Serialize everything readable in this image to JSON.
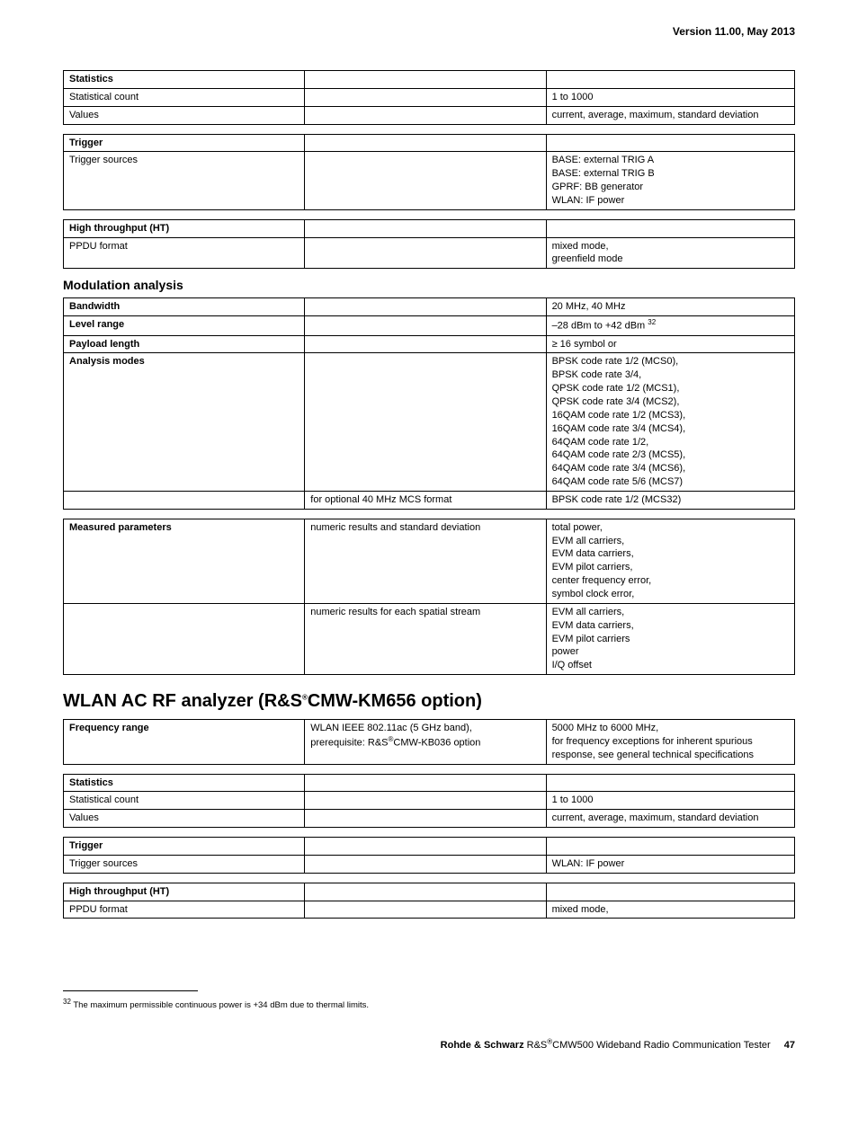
{
  "version_header": "Version 11.00, May 2013",
  "tbl_stats1": {
    "h": "Statistics",
    "rows": [
      {
        "l": "Statistical count",
        "c": "",
        "r": "1 to 1000"
      },
      {
        "l": "Values",
        "c": "",
        "r": "current, average, maximum, standard deviation"
      }
    ]
  },
  "tbl_trigger1": {
    "h": "Trigger",
    "rows": [
      {
        "l": "Trigger sources",
        "c": "",
        "r": "BASE: external TRIG A\nBASE: external TRIG B\nGPRF: BB generator\nWLAN: IF power"
      }
    ]
  },
  "tbl_ht1": {
    "h": "High throughput (HT)",
    "rows": [
      {
        "l": "PPDU format",
        "c": "",
        "r": "mixed mode,\ngreenfield mode"
      }
    ]
  },
  "mod_heading": "Modulation analysis",
  "tbl_mod": {
    "rows": [
      {
        "lh": true,
        "l": "Bandwidth",
        "c": "",
        "r": "20 MHz, 40 MHz"
      },
      {
        "lh": true,
        "l": "Level range",
        "c": "",
        "r_html": "–28 dBm to +42 dBm <sup>32</sup>"
      },
      {
        "lh": true,
        "l": "Payload length",
        "c": "",
        "r": "≥ 16 symbol or"
      },
      {
        "lh": true,
        "l": "Analysis modes",
        "c": "",
        "r": "BPSK code rate 1/2 (MCS0),\nBPSK code rate 3/4,\nQPSK code rate 1/2 (MCS1),\nQPSK code rate 3/4 (MCS2),\n16QAM code rate 1/2 (MCS3),\n16QAM code rate 3/4 (MCS4),\n64QAM code rate 1/2,\n64QAM code rate 2/3 (MCS5),\n64QAM code rate 3/4 (MCS6),\n64QAM code rate 5/6 (MCS7)"
      },
      {
        "l": "",
        "c": "for optional 40 MHz MCS format",
        "r": "BPSK code rate 1/2 (MCS32)"
      }
    ]
  },
  "tbl_meas": {
    "rows": [
      {
        "lh": true,
        "l": "Measured parameters",
        "c": "numeric results and standard deviation",
        "r": "total power,\nEVM all carriers,\nEVM data carriers,\nEVM pilot carriers,\ncenter frequency error,\nsymbol clock error,"
      },
      {
        "l": "",
        "c": "numeric results for each spatial stream",
        "r": "EVM all carriers,\nEVM data carriers,\nEVM pilot carriers\npower\nI/Q offset"
      }
    ]
  },
  "main_heading_html": "WLAN AC RF analyzer (R&S<sup>®</sup>CMW-KM656 option)",
  "tbl_freq": {
    "rows": [
      {
        "lh": true,
        "l": "Frequency range",
        "c_html": "WLAN IEEE 802.11ac (5 GHz band),\nprerequisite: R&S<sup>®</sup>CMW-KB036 option",
        "r": "5000 MHz to 6000 MHz,\nfor frequency exceptions for inherent spurious response, see general technical specifications"
      }
    ]
  },
  "tbl_stats2": {
    "h": "Statistics",
    "rows": [
      {
        "l": "Statistical count",
        "c": "",
        "r": "1 to 1000"
      },
      {
        "l": "Values",
        "c": "",
        "r": "current, average, maximum, standard deviation"
      }
    ]
  },
  "tbl_trigger2": {
    "h": "Trigger",
    "rows": [
      {
        "l": "Trigger sources",
        "c": "",
        "r": "WLAN: IF power"
      }
    ]
  },
  "tbl_ht2": {
    "h": "High throughput (HT)",
    "rows": [
      {
        "l": "PPDU format",
        "c": "",
        "r": "mixed mode,"
      }
    ]
  },
  "footnote_html": "<sup>32</sup>  The maximum permissible continuous power is +34 dBm due to thermal limits.",
  "footer_html": "<b>Rohde & Schwarz</b> R&S<sup>®</sup>CMW500 Wideband Radio Communication Tester",
  "page_number": "47"
}
